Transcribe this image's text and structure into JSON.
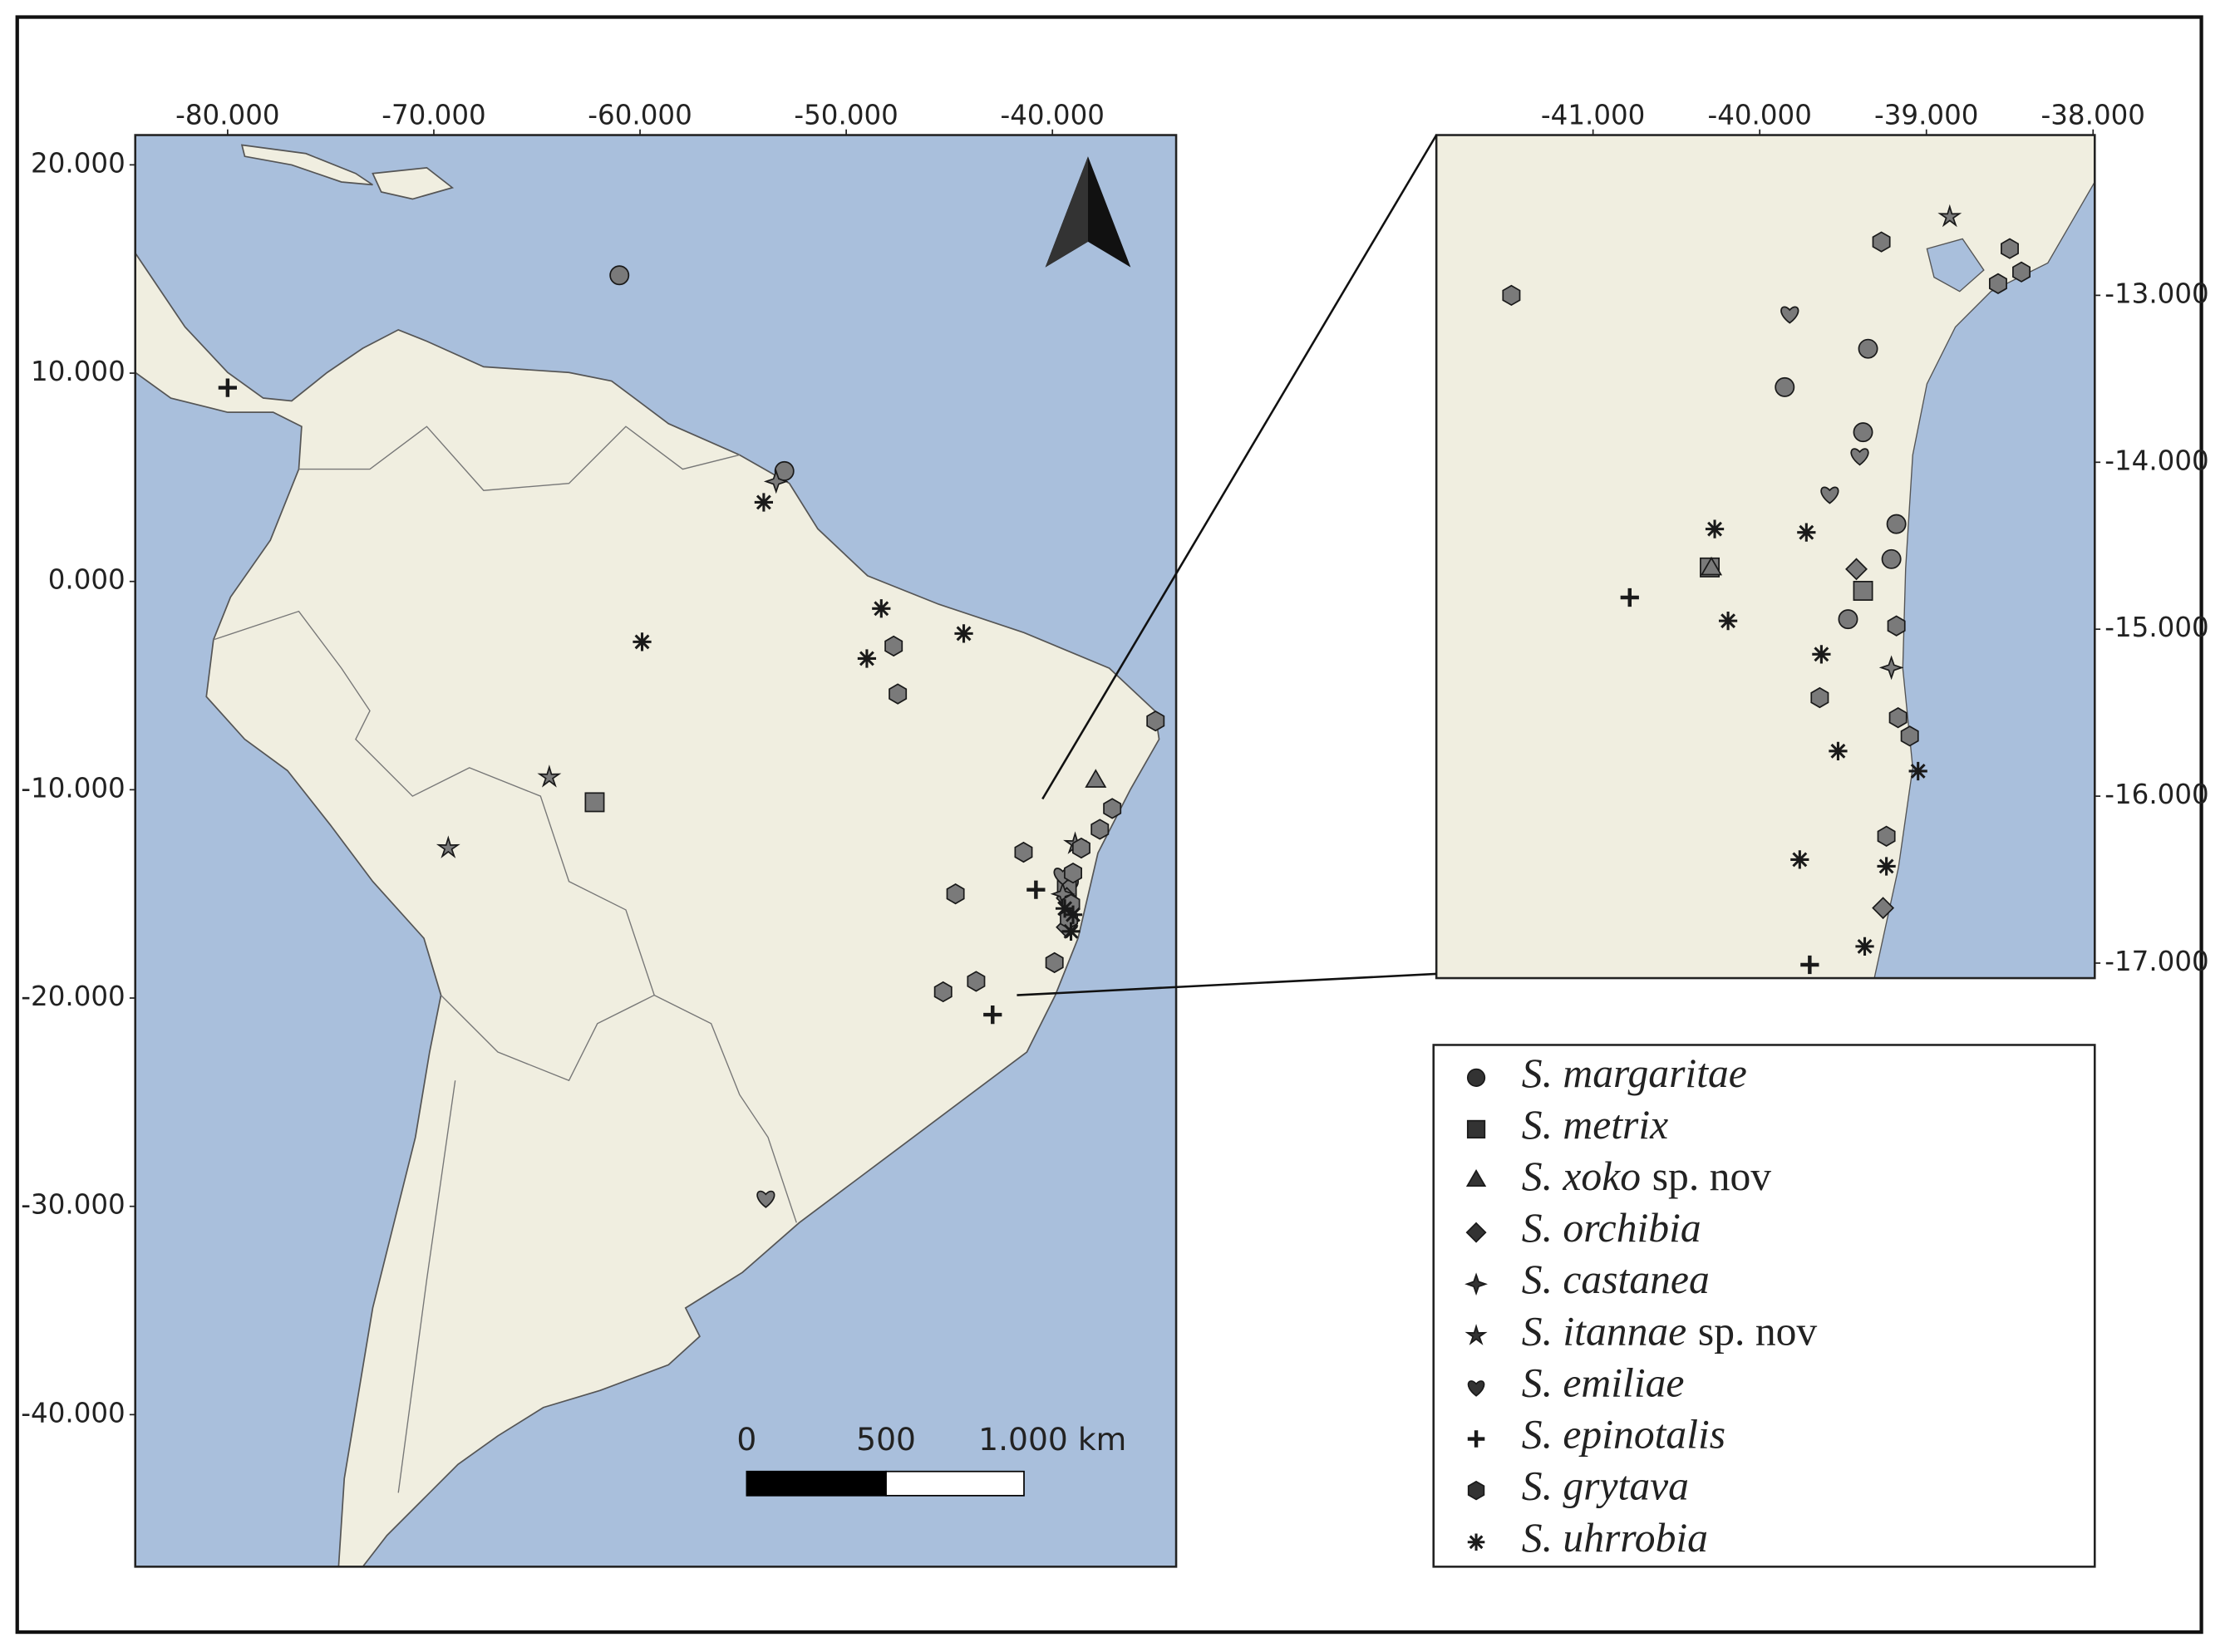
{
  "main_map": {
    "xlim": [
      -84.48,
      -34.0
    ],
    "ylim": [
      -47.3,
      21.43
    ],
    "xticks": [
      {
        "value": -80,
        "label": "-80.000"
      },
      {
        "value": -70,
        "label": "-70.000"
      },
      {
        "value": -60,
        "label": "-60.000"
      },
      {
        "value": -50,
        "label": "-50.000"
      },
      {
        "value": -40,
        "label": "-40.000"
      }
    ],
    "yticks": [
      {
        "value": 20,
        "label": "20.000"
      },
      {
        "value": 10,
        "label": "10.000"
      },
      {
        "value": 0,
        "label": "0.000"
      },
      {
        "value": -10,
        "label": "-10.000"
      },
      {
        "value": -20,
        "label": "-20.000"
      },
      {
        "value": -30,
        "label": "-30.000"
      },
      {
        "value": -40,
        "label": "-40.000"
      }
    ]
  },
  "inset_map": {
    "xlim": [
      -41.94,
      -37.99
    ],
    "ylim": [
      -17.09,
      -12.04
    ],
    "xticks": [
      {
        "value": -41,
        "label": "-41.000"
      },
      {
        "value": -40,
        "label": "-40.000"
      },
      {
        "value": -39,
        "label": "-39.000"
      },
      {
        "value": -38,
        "label": "-38.000"
      }
    ],
    "yticks": [
      {
        "value": -13,
        "label": "-13.000"
      },
      {
        "value": -14,
        "label": "-14.000"
      },
      {
        "value": -15,
        "label": "-15.000"
      },
      {
        "value": -16,
        "label": "-16.000"
      },
      {
        "value": -17,
        "label": "-17.000"
      }
    ]
  },
  "scale_bar": {
    "labels": [
      "0",
      "500",
      "1.000 km"
    ]
  },
  "legend": [
    {
      "name": "S. margaritae",
      "shape": "circle",
      "main": [
        [
          -61.0,
          14.7
        ],
        [
          -53.0,
          5.3
        ],
        [
          -39.2,
          -14.4
        ]
      ],
      "inset": [
        [
          -39.35,
          -13.32
        ],
        [
          -39.85,
          -13.55
        ],
        [
          -39.38,
          -13.82
        ],
        [
          -39.21,
          -14.58
        ],
        [
          -39.47,
          -14.94
        ],
        [
          -39.18,
          -14.37
        ]
      ]
    },
    {
      "name": "S. metrix",
      "shape": "square",
      "main": [
        [
          -62.2,
          -10.6
        ],
        [
          -39.3,
          -14.8
        ]
      ],
      "inset": [
        [
          -40.3,
          -14.63
        ],
        [
          -39.38,
          -14.77
        ]
      ]
    },
    {
      "name": "S. xoko",
      "suffix": "sp. nov",
      "shape": "triangle",
      "main": [
        [
          -37.9,
          -9.6
        ]
      ],
      "inset": [
        [
          -40.29,
          -14.64
        ]
      ]
    },
    {
      "name": "S. orchibia",
      "shape": "diamond",
      "main": [
        [
          -39.3,
          -15.2
        ],
        [
          -39.3,
          -16.6
        ]
      ],
      "inset": [
        [
          -39.26,
          -16.67
        ],
        [
          -39.42,
          -14.64
        ]
      ]
    },
    {
      "name": "S. castanea",
      "shape": "star4",
      "main": [
        [
          -53.4,
          4.8
        ],
        [
          -39.5,
          -15.0
        ]
      ],
      "inset": [
        [
          -39.21,
          -15.23
        ]
      ]
    },
    {
      "name": "S. itannae",
      "suffix": "sp. nov",
      "shape": "star5",
      "main": [
        [
          -64.4,
          -9.4
        ],
        [
          -69.3,
          -12.8
        ],
        [
          -38.9,
          -12.6
        ]
      ],
      "inset": [
        [
          -38.86,
          -12.53
        ]
      ]
    },
    {
      "name": "S. emiliae",
      "shape": "heart",
      "main": [
        [
          -53.9,
          -29.6
        ],
        [
          -39.5,
          -14.1
        ]
      ],
      "inset": [
        [
          -39.82,
          -13.11
        ],
        [
          -39.4,
          -13.96
        ],
        [
          -39.58,
          -14.19
        ]
      ]
    },
    {
      "name": "S. epinotalis",
      "shape": "plus",
      "main": [
        [
          -80.0,
          9.3
        ],
        [
          -42.9,
          -20.8
        ],
        [
          -40.8,
          -14.8
        ]
      ],
      "inset": [
        [
          -40.78,
          -14.81
        ],
        [
          -39.7,
          -17.01
        ]
      ]
    },
    {
      "name": "S. grytava",
      "shape": "hexagon",
      "main": [
        [
          -47.7,
          -3.1
        ],
        [
          -47.5,
          -5.4
        ],
        [
          -35.0,
          -6.7
        ],
        [
          -37.1,
          -10.9
        ],
        [
          -37.7,
          -11.9
        ],
        [
          -41.4,
          -13.0
        ],
        [
          -44.7,
          -15.0
        ],
        [
          -45.3,
          -19.7
        ],
        [
          -43.7,
          -19.2
        ],
        [
          -39.9,
          -18.3
        ],
        [
          -38.6,
          -12.8
        ],
        [
          -39.1,
          -15.5
        ],
        [
          -39.0,
          -14.0
        ],
        [
          -39.2,
          -16.2
        ]
      ],
      "inset": [
        [
          -41.49,
          -13.0
        ],
        [
          -39.27,
          -12.68
        ],
        [
          -38.5,
          -12.72
        ],
        [
          -38.57,
          -12.93
        ],
        [
          -38.43,
          -12.86
        ],
        [
          -39.64,
          -15.41
        ],
        [
          -39.17,
          -15.53
        ],
        [
          -39.1,
          -15.64
        ],
        [
          -39.24,
          -16.24
        ],
        [
          -39.18,
          -14.98
        ]
      ]
    },
    {
      "name": "S. uhrrobia",
      "shape": "asterisk",
      "main": [
        [
          -59.9,
          -2.9
        ],
        [
          -54.0,
          3.8
        ],
        [
          -49.0,
          -3.7
        ],
        [
          -44.3,
          -2.5
        ],
        [
          -48.3,
          -1.3
        ],
        [
          -39.0,
          -16.0
        ],
        [
          -39.4,
          -15.7
        ],
        [
          -39.1,
          -16.8
        ]
      ],
      "inset": [
        [
          -40.27,
          -14.4
        ],
        [
          -40.19,
          -14.95
        ],
        [
          -39.76,
          -16.38
        ],
        [
          -39.05,
          -15.85
        ],
        [
          -39.37,
          -16.9
        ],
        [
          -39.24,
          -16.42
        ],
        [
          -39.53,
          -15.73
        ],
        [
          -39.63,
          -15.15
        ],
        [
          -39.72,
          -14.42
        ]
      ]
    }
  ]
}
